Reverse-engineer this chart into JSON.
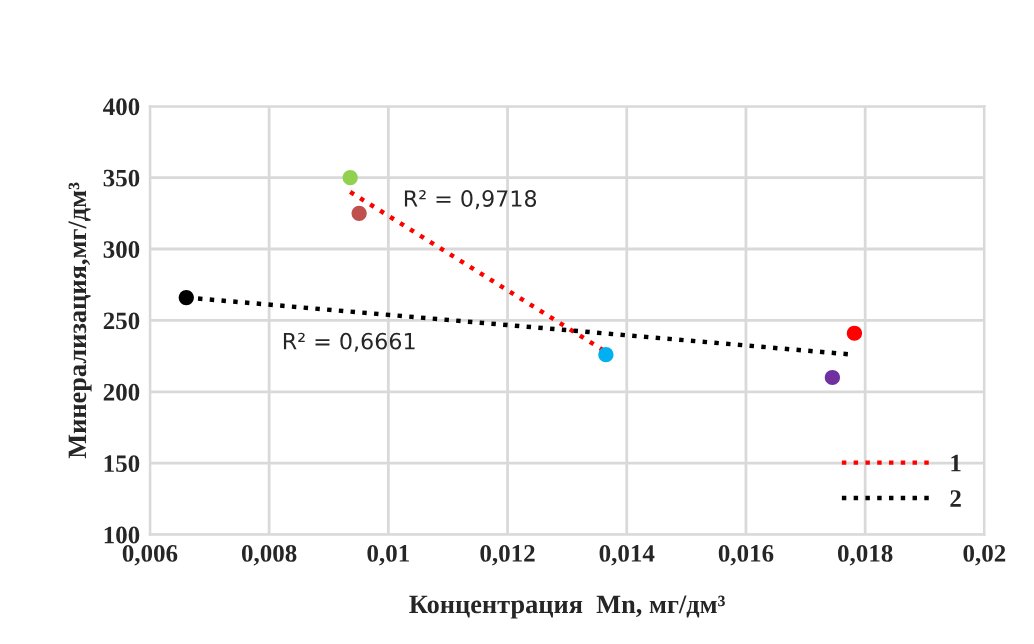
{
  "chart_data": {
    "type": "scatter",
    "xlabel": "Концентрация  Mn, мг/дм³",
    "ylabel": "Минерализация,мг/дм³",
    "xlim": [
      0.006,
      0.02
    ],
    "ylim": [
      100,
      400
    ],
    "xticks": [
      {
        "value": 0.006,
        "label": "0,006"
      },
      {
        "value": 0.008,
        "label": "0,008"
      },
      {
        "value": 0.01,
        "label": "0,01"
      },
      {
        "value": 0.012,
        "label": "0,012"
      },
      {
        "value": 0.014,
        "label": "0,014"
      },
      {
        "value": 0.016,
        "label": "0,016"
      },
      {
        "value": 0.018,
        "label": "0,018"
      },
      {
        "value": 0.02,
        "label": "0,02"
      }
    ],
    "yticks": [
      100,
      150,
      200,
      250,
      300,
      350,
      400
    ],
    "grid": true,
    "legend": "bottom right",
    "series": [
      {
        "marker": "circle",
        "x": [
          0.00936,
          0.00951,
          0.00661,
          0.01365,
          0.01745,
          0.01782
        ],
        "values": [
          350,
          325,
          266,
          226,
          210,
          241
        ],
        "colors": [
          "#92d050",
          "#c0504d",
          "#000000",
          "#00b0f0",
          "#7030a0",
          "#ff0000"
        ]
      },
      {
        "type": "line",
        "name": "1",
        "color": "#ff0000",
        "line_style": "dotted",
        "marker": "none",
        "x": [
          0.00936,
          0.01365
        ],
        "values": [
          340,
          228
        ]
      },
      {
        "type": "line",
        "name": "2",
        "color": "#000000",
        "line_style": "dotted",
        "marker": "none",
        "x": [
          0.00661,
          0.0178
        ],
        "values": [
          266,
          226
        ]
      }
    ],
    "annotations": [
      "R² = 0,9718",
      "R² = 0,6661"
    ]
  }
}
